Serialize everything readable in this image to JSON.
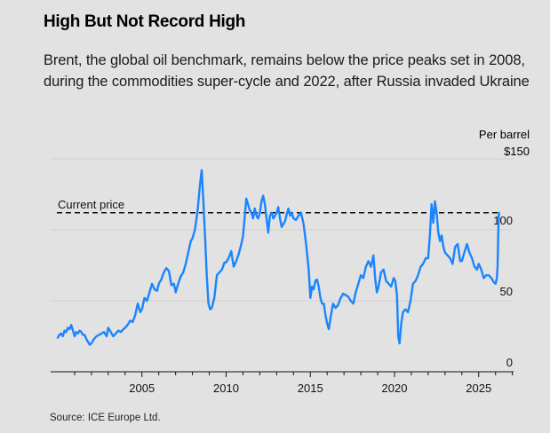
{
  "header": {
    "title": "High But Not Record High",
    "subtitle": "Brent, the global oil benchmark, remains below the price peaks set in 2008, during the commodities super-cycle and 2022, after Russia invaded Ukraine"
  },
  "footer": {
    "source": "Source: ICE Europe Ltd."
  },
  "colors": {
    "line": "#1a85ff",
    "background": "#e2e2e2",
    "gridline": "#d0d0d0",
    "axis": "#111111",
    "reference_line": "#111111"
  },
  "chart_data": {
    "type": "line",
    "title": "High But Not Record High",
    "xlabel": "",
    "ylabel": "Per barrel",
    "unit_label": "Per barrel",
    "y_top_label": "$150",
    "xlim": [
      2000.0,
      2027.8
    ],
    "ylim": [
      0,
      150
    ],
    "y_ticks": [
      0,
      50,
      100,
      150
    ],
    "y_tick_labels": [
      "0",
      "50",
      "100",
      "$150"
    ],
    "x_ticks": [
      2005,
      2010,
      2015,
      2020,
      2025
    ],
    "x_tick_labels": [
      "2005",
      "2010",
      "2015",
      "2020",
      "2025"
    ],
    "x_minor_ticks_every_year": true,
    "grid": true,
    "legend": "none",
    "annotations": [
      {
        "label": "Current price",
        "type": "horizontal-dashed-line",
        "value": 112
      }
    ],
    "series": [
      {
        "name": "Brent crude",
        "x": [
          2000.0,
          2000.1,
          2000.2,
          2000.3,
          2000.4,
          2000.5,
          2000.6,
          2000.7,
          2000.8,
          2000.9,
          2001.0,
          2001.1,
          2001.2,
          2001.3,
          2001.4,
          2001.5,
          2001.6,
          2001.7,
          2001.8,
          2001.9,
          2002.0,
          2002.15,
          2002.3,
          2002.45,
          2002.6,
          2002.75,
          2002.9,
          2003.0,
          2003.15,
          2003.3,
          2003.45,
          2003.6,
          2003.75,
          2003.9,
          2004.0,
          2004.15,
          2004.3,
          2004.45,
          2004.6,
          2004.75,
          2004.9,
          2005.0,
          2005.15,
          2005.3,
          2005.45,
          2005.6,
          2005.75,
          2005.9,
          2006.0,
          2006.15,
          2006.3,
          2006.45,
          2006.6,
          2006.75,
          2006.9,
          2007.0,
          2007.15,
          2007.3,
          2007.45,
          2007.6,
          2007.75,
          2007.9,
          2008.0,
          2008.15,
          2008.3,
          2008.45,
          2008.55,
          2008.65,
          2008.75,
          2008.85,
          2008.95,
          2009.05,
          2009.15,
          2009.3,
          2009.45,
          2009.6,
          2009.75,
          2009.9,
          2010.0,
          2010.15,
          2010.3,
          2010.45,
          2010.6,
          2010.75,
          2010.9,
          2011.0,
          2011.1,
          2011.2,
          2011.3,
          2011.4,
          2011.5,
          2011.6,
          2011.7,
          2011.8,
          2011.9,
          2012.0,
          2012.1,
          2012.2,
          2012.3,
          2012.4,
          2012.5,
          2012.6,
          2012.7,
          2012.8,
          2012.9,
          2013.0,
          2013.1,
          2013.2,
          2013.3,
          2013.4,
          2013.5,
          2013.6,
          2013.7,
          2013.8,
          2013.9,
          2014.0,
          2014.15,
          2014.3,
          2014.45,
          2014.6,
          2014.75,
          2014.9,
          2015.0,
          2015.1,
          2015.2,
          2015.3,
          2015.4,
          2015.5,
          2015.6,
          2015.7,
          2015.8,
          2015.9,
          2016.0,
          2016.1,
          2016.2,
          2016.35,
          2016.5,
          2016.65,
          2016.8,
          2016.95,
          2017.1,
          2017.25,
          2017.4,
          2017.55,
          2017.7,
          2017.85,
          2018.0,
          2018.15,
          2018.3,
          2018.45,
          2018.6,
          2018.75,
          2018.85,
          2018.95,
          2019.05,
          2019.2,
          2019.35,
          2019.5,
          2019.65,
          2019.8,
          2019.95,
          2020.05,
          2020.15,
          2020.22,
          2020.3,
          2020.4,
          2020.5,
          2020.65,
          2020.8,
          2020.95,
          2021.1,
          2021.25,
          2021.4,
          2021.55,
          2021.7,
          2021.85,
          2022.0,
          2022.1,
          2022.2,
          2022.3,
          2022.4,
          2022.5,
          2022.6,
          2022.7,
          2022.8,
          2022.9,
          2023.0,
          2023.15,
          2023.3,
          2023.45,
          2023.6,
          2023.75,
          2023.9,
          2024.0,
          2024.15,
          2024.3,
          2024.45,
          2024.6,
          2024.75,
          2024.9,
          2025.0,
          2025.15,
          2025.3,
          2025.45,
          2025.6,
          2025.75,
          2025.9,
          2026.0,
          2026.08,
          2026.12,
          2026.16,
          2026.2
        ],
        "values": [
          24,
          26,
          27,
          25,
          29,
          28,
          31,
          30,
          33,
          29,
          25,
          28,
          27,
          29,
          28,
          26,
          26,
          23,
          21,
          19,
          20,
          23,
          25,
          26,
          27,
          28,
          25,
          31,
          28,
          25,
          27,
          29,
          28,
          30,
          31,
          33,
          36,
          35,
          40,
          48,
          42,
          44,
          52,
          50,
          56,
          62,
          58,
          57,
          62,
          65,
          70,
          73,
          71,
          61,
          62,
          56,
          62,
          67,
          70,
          76,
          84,
          92,
          94,
          100,
          113,
          132,
          142,
          120,
          95,
          68,
          48,
          44,
          45,
          52,
          68,
          70,
          72,
          77,
          77,
          80,
          85,
          74,
          78,
          83,
          90,
          95,
          108,
          122,
          118,
          114,
          112,
          108,
          115,
          110,
          108,
          112,
          120,
          124,
          118,
          108,
          98,
          110,
          112,
          108,
          110,
          112,
          116,
          108,
          102,
          104,
          106,
          111,
          115,
          110,
          112,
          108,
          107,
          110,
          112,
          104,
          90,
          72,
          52,
          60,
          58,
          64,
          65,
          60,
          52,
          48,
          48,
          40,
          34,
          30,
          38,
          48,
          45,
          47,
          52,
          55,
          54,
          53,
          50,
          48,
          56,
          62,
          68,
          66,
          74,
          78,
          74,
          82,
          66,
          56,
          60,
          70,
          72,
          64,
          62,
          60,
          66,
          64,
          54,
          25,
          20,
          34,
          42,
          44,
          42,
          50,
          62,
          64,
          68,
          74,
          76,
          80,
          80,
          96,
          118,
          105,
          120,
          112,
          98,
          92,
          96,
          88,
          84,
          82,
          80,
          76,
          88,
          90,
          78,
          78,
          84,
          90,
          84,
          80,
          74,
          72,
          76,
          72,
          66,
          68,
          68,
          66,
          63,
          62,
          66,
          74,
          96,
          112
        ]
      }
    ]
  }
}
